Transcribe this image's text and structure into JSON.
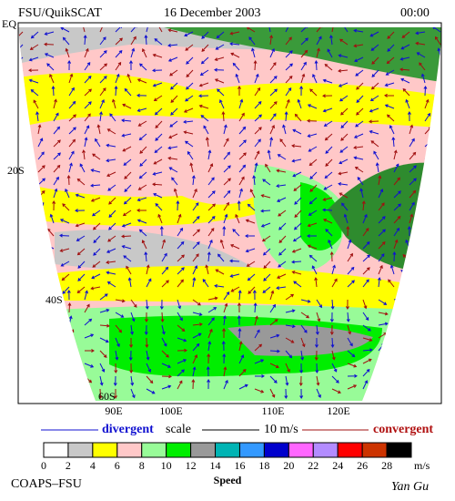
{
  "header": {
    "source": "FSU/QuikSCAT",
    "date": "16 December 2003",
    "time": "00:00"
  },
  "map": {
    "lat_labels": [
      "EQ",
      "20S",
      "40S",
      "60S"
    ],
    "lon_labels": [
      "90E",
      "100E",
      "110E",
      "120E"
    ]
  },
  "legend": {
    "divergent": "divergent",
    "scale": "scale",
    "scale_value": "10 m/s",
    "convergent": "convergent"
  },
  "colorbar": {
    "ticks": [
      0,
      2,
      4,
      6,
      8,
      10,
      12,
      14,
      16,
      18,
      20,
      22,
      24,
      26,
      28
    ],
    "colors": [
      "#ffffff",
      "#c8c8c8",
      "#ffff00",
      "#ffc8c8",
      "#98fb98",
      "#00ee00",
      "#999999",
      "#00b4b4",
      "#3399ff",
      "#0000cc",
      "#ff66ff",
      "#b38cff",
      "#ff0000",
      "#cc3300",
      "#000000"
    ],
    "unit": "m/s",
    "title": "Speed"
  },
  "footer": {
    "left": "COAPS–FSU",
    "right": "Yan Gu"
  }
}
